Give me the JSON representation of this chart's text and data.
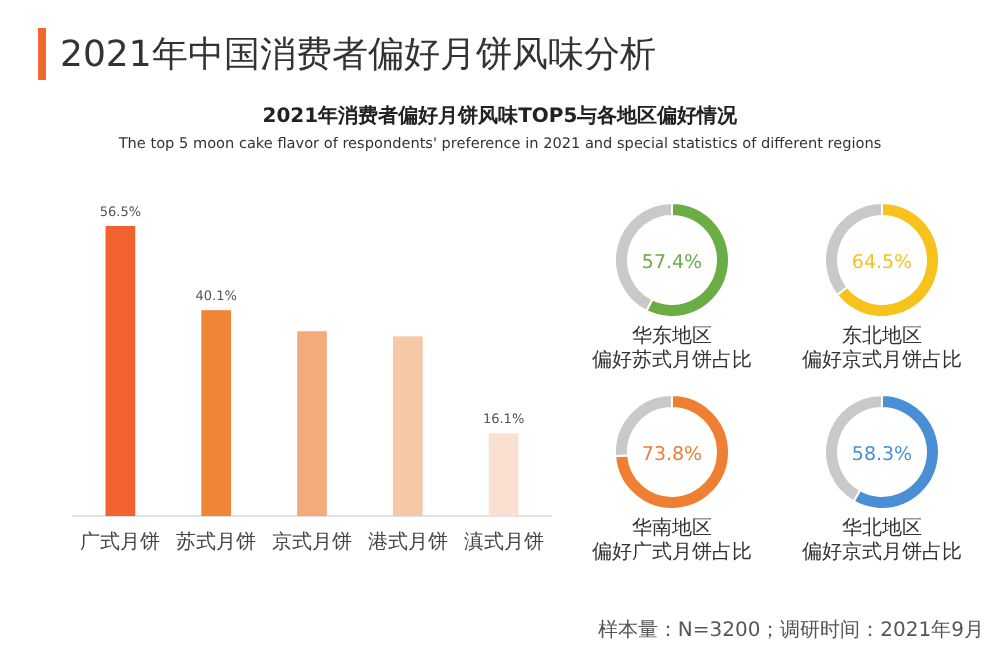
{
  "chart_data": [
    {
      "type": "bar",
      "title": "2021年中国消费者偏好月饼风味分析",
      "subtitle": "2021年消费者偏好月饼风味TOP5与各地区偏好情况",
      "annotations": [
        "The top 5 moon cake flavor of respondents' preference  in 2021 and special statistics of  different regions",
        "样本量：N=3200；调研时间：2021年9月"
      ],
      "categories": [
        "广式月饼",
        "苏式月饼",
        "京式月饼",
        "港式月饼",
        "滇式月饼"
      ],
      "values": [
        56.5,
        40.1,
        36,
        35,
        16.1
      ],
      "colors": [
        "#f26130",
        "#f08536",
        "#f3ab7b",
        "#f7c8a5",
        "#fae0d1"
      ],
      "value_labels": [
        "56.5%",
        "40.1%",
        null,
        null,
        "16.1%"
      ]
    },
    {
      "type": "donut",
      "title": "华东地区",
      "subtitle": "偏好苏式月饼占比",
      "categories": [
        null,
        null
      ],
      "values": [
        57.4,
        42.6
      ],
      "colors": [
        "#6aad45",
        "#c9c9c9"
      ],
      "value_labels": [
        "57.4%",
        null
      ]
    },
    {
      "type": "donut",
      "title": "东北地区",
      "subtitle": "偏好京式月饼占比",
      "categories": [
        null,
        null
      ],
      "values": [
        64.5,
        35.5
      ],
      "colors": [
        "#f7c21c",
        "#c9c9c9"
      ],
      "value_labels": [
        "64.5%",
        null
      ]
    },
    {
      "type": "donut",
      "title": "华南地区",
      "subtitle": "偏好广式月饼占比",
      "categories": [
        null,
        null
      ],
      "values": [
        73.8,
        26.2
      ],
      "colors": [
        "#ee7f33",
        "#c9c9c9"
      ],
      "value_labels": [
        "73.8%",
        null
      ]
    },
    {
      "type": "donut",
      "title": "华北地区",
      "subtitle": "偏好京式月饼占比",
      "categories": [
        null,
        null
      ],
      "values": [
        58.3,
        41.7
      ],
      "colors": [
        "#4a8fd6",
        "#c9c9c9"
      ],
      "value_labels": [
        "58.3%",
        null
      ]
    }
  ]
}
